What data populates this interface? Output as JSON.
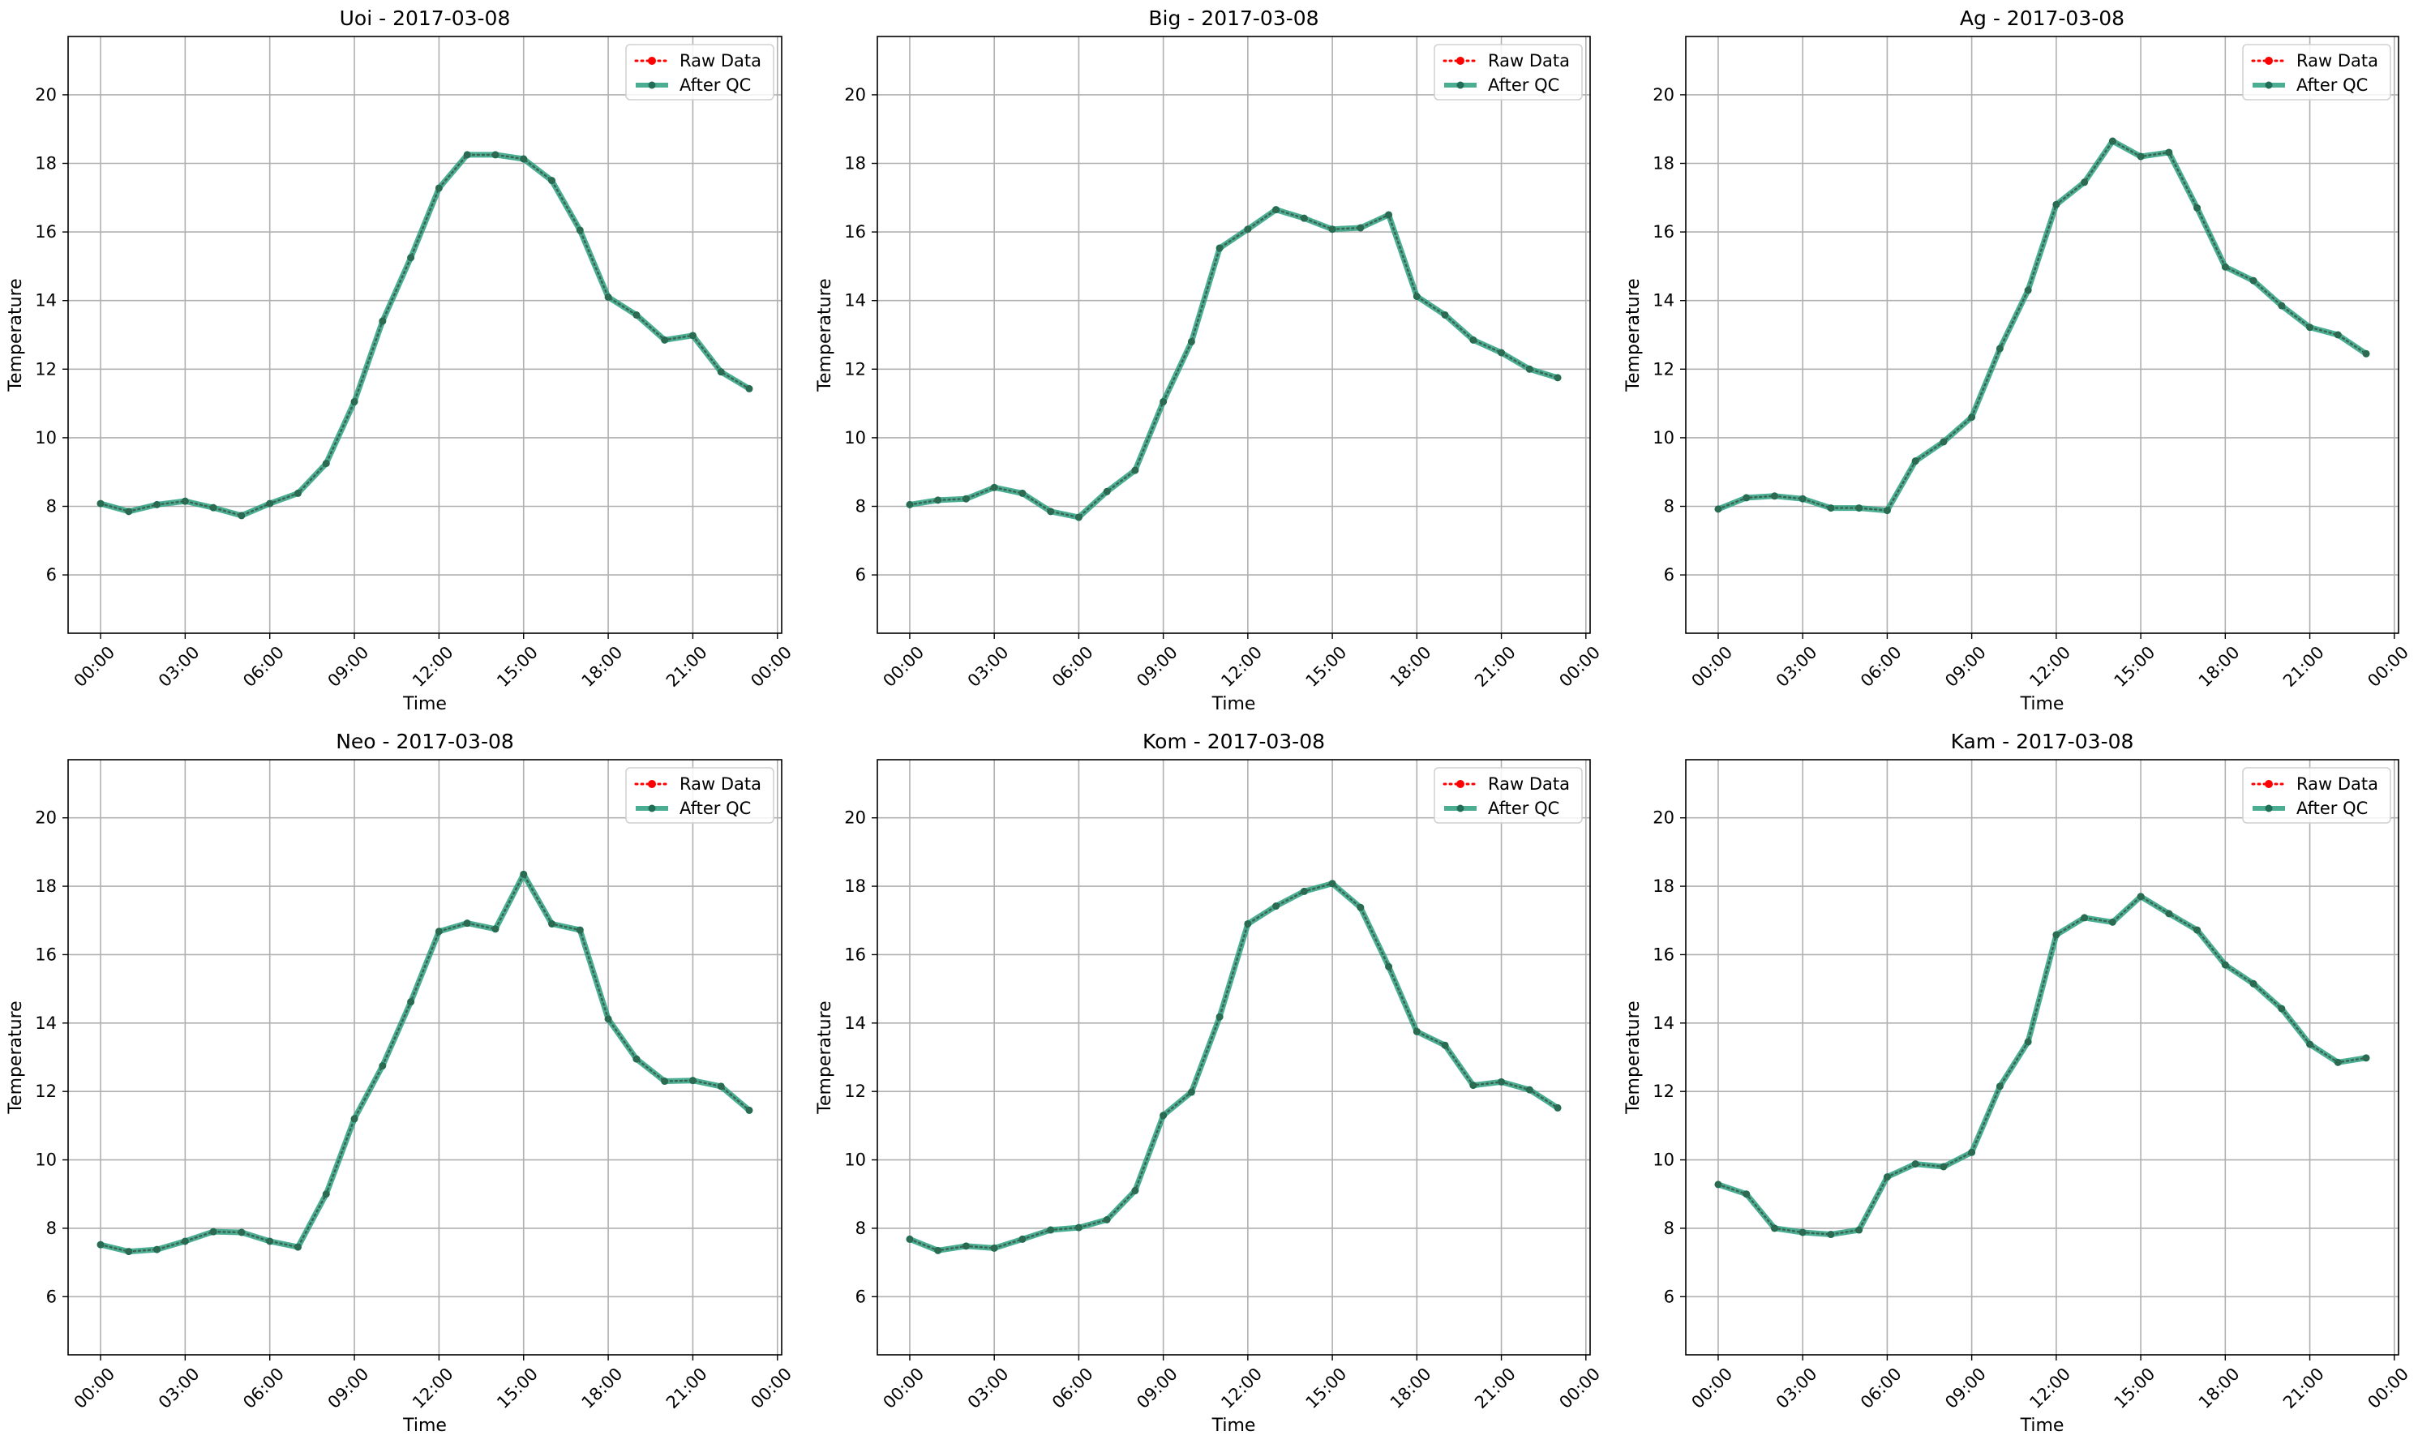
{
  "chart_data": [
    {
      "type": "line",
      "title": "Uoi - 2017-03-08",
      "xlabel": "Time",
      "ylabel": "Temperature",
      "x": [
        "00:00",
        "01:00",
        "02:00",
        "03:00",
        "04:00",
        "05:00",
        "06:00",
        "07:00",
        "08:00",
        "09:00",
        "10:00",
        "11:00",
        "12:00",
        "13:00",
        "14:00",
        "15:00",
        "16:00",
        "17:00",
        "18:00",
        "19:00",
        "20:00",
        "21:00",
        "22:00",
        "23:00"
      ],
      "xticks": [
        "00:00",
        "03:00",
        "06:00",
        "09:00",
        "12:00",
        "15:00",
        "18:00",
        "21:00",
        "00:00"
      ],
      "yticks": [
        6,
        8,
        10,
        12,
        14,
        16,
        18,
        20
      ],
      "ylim": [
        4.3,
        21.7
      ],
      "grid": true,
      "legend_position": "top-right",
      "series": [
        {
          "name": "Raw Data",
          "color": "#ff0000",
          "style": "dotted",
          "values": [
            8.08,
            7.85,
            8.05,
            8.15,
            7.96,
            7.73,
            8.08,
            8.38,
            9.25,
            11.05,
            13.4,
            15.25,
            17.28,
            18.25,
            18.25,
            18.13,
            17.5,
            16.05,
            14.1,
            13.58,
            12.85,
            12.98,
            11.92,
            11.43
          ]
        },
        {
          "name": "After QC",
          "color": "#2ca080",
          "style": "solid",
          "values": [
            8.08,
            7.85,
            8.05,
            8.15,
            7.96,
            7.73,
            8.08,
            8.38,
            9.25,
            11.05,
            13.4,
            15.25,
            17.28,
            18.25,
            18.25,
            18.13,
            17.5,
            16.05,
            14.1,
            13.58,
            12.85,
            12.98,
            11.92,
            11.43
          ]
        }
      ]
    },
    {
      "type": "line",
      "title": "Big - 2017-03-08",
      "xlabel": "Time",
      "ylabel": "Temperature",
      "x": [
        "00:00",
        "01:00",
        "02:00",
        "03:00",
        "04:00",
        "05:00",
        "06:00",
        "07:00",
        "08:00",
        "09:00",
        "10:00",
        "11:00",
        "12:00",
        "13:00",
        "14:00",
        "15:00",
        "16:00",
        "17:00",
        "18:00",
        "19:00",
        "20:00",
        "21:00",
        "22:00",
        "23:00"
      ],
      "xticks": [
        "00:00",
        "03:00",
        "06:00",
        "09:00",
        "12:00",
        "15:00",
        "18:00",
        "21:00",
        "00:00"
      ],
      "yticks": [
        6,
        8,
        10,
        12,
        14,
        16,
        18,
        20
      ],
      "ylim": [
        4.3,
        21.7
      ],
      "grid": true,
      "legend_position": "top-right",
      "series": [
        {
          "name": "Raw Data",
          "color": "#ff0000",
          "style": "dotted",
          "values": [
            8.05,
            8.18,
            8.22,
            8.55,
            8.38,
            7.85,
            7.68,
            8.43,
            9.05,
            11.05,
            12.8,
            15.53,
            16.08,
            16.65,
            16.4,
            16.08,
            16.12,
            16.5,
            14.12,
            13.58,
            12.85,
            12.48,
            12.0,
            11.75
          ]
        },
        {
          "name": "After QC",
          "color": "#2ca080",
          "style": "solid",
          "values": [
            8.05,
            8.18,
            8.22,
            8.55,
            8.38,
            7.85,
            7.68,
            8.43,
            9.05,
            11.05,
            12.8,
            15.53,
            16.08,
            16.65,
            16.4,
            16.08,
            16.12,
            16.5,
            14.12,
            13.58,
            12.85,
            12.48,
            12.0,
            11.75
          ]
        }
      ]
    },
    {
      "type": "line",
      "title": "Ag - 2017-03-08",
      "xlabel": "Time",
      "ylabel": "Temperature",
      "x": [
        "00:00",
        "01:00",
        "02:00",
        "03:00",
        "04:00",
        "05:00",
        "06:00",
        "07:00",
        "08:00",
        "09:00",
        "10:00",
        "11:00",
        "12:00",
        "13:00",
        "14:00",
        "15:00",
        "16:00",
        "17:00",
        "18:00",
        "19:00",
        "20:00",
        "21:00",
        "22:00",
        "23:00"
      ],
      "xticks": [
        "00:00",
        "03:00",
        "06:00",
        "09:00",
        "12:00",
        "15:00",
        "18:00",
        "21:00",
        "00:00"
      ],
      "yticks": [
        6,
        8,
        10,
        12,
        14,
        16,
        18,
        20
      ],
      "ylim": [
        4.3,
        21.7
      ],
      "grid": true,
      "legend_position": "top-right",
      "series": [
        {
          "name": "Raw Data",
          "color": "#ff0000",
          "style": "dotted",
          "values": [
            7.92,
            8.25,
            8.3,
            8.22,
            7.95,
            7.95,
            7.88,
            9.32,
            9.88,
            10.6,
            12.6,
            14.3,
            16.8,
            17.45,
            18.65,
            18.2,
            18.32,
            16.7,
            14.98,
            14.58,
            13.85,
            13.22,
            13.0,
            12.45
          ]
        },
        {
          "name": "After QC",
          "color": "#2ca080",
          "style": "solid",
          "values": [
            7.92,
            8.25,
            8.3,
            8.22,
            7.95,
            7.95,
            7.88,
            9.32,
            9.88,
            10.6,
            12.6,
            14.3,
            16.8,
            17.45,
            18.65,
            18.2,
            18.32,
            16.7,
            14.98,
            14.58,
            13.85,
            13.22,
            13.0,
            12.45
          ]
        }
      ]
    },
    {
      "type": "line",
      "title": "Neo - 2017-03-08",
      "xlabel": "Time",
      "ylabel": "Temperature",
      "x": [
        "00:00",
        "01:00",
        "02:00",
        "03:00",
        "04:00",
        "05:00",
        "06:00",
        "07:00",
        "08:00",
        "09:00",
        "10:00",
        "11:00",
        "12:00",
        "13:00",
        "14:00",
        "15:00",
        "16:00",
        "17:00",
        "18:00",
        "19:00",
        "20:00",
        "21:00",
        "22:00",
        "23:00"
      ],
      "xticks": [
        "00:00",
        "03:00",
        "06:00",
        "09:00",
        "12:00",
        "15:00",
        "18:00",
        "21:00",
        "00:00"
      ],
      "yticks": [
        6,
        8,
        10,
        12,
        14,
        16,
        18,
        20
      ],
      "ylim": [
        4.3,
        21.7
      ],
      "grid": true,
      "legend_position": "top-right",
      "series": [
        {
          "name": "Raw Data",
          "color": "#ff0000",
          "style": "dotted",
          "values": [
            7.52,
            7.32,
            7.38,
            7.62,
            7.9,
            7.88,
            7.62,
            7.45,
            9.0,
            11.2,
            12.75,
            14.62,
            16.68,
            16.92,
            16.75,
            18.35,
            16.9,
            16.72,
            14.12,
            12.95,
            12.3,
            12.32,
            12.15,
            11.45
          ]
        },
        {
          "name": "After QC",
          "color": "#2ca080",
          "style": "solid",
          "values": [
            7.52,
            7.32,
            7.38,
            7.62,
            7.9,
            7.88,
            7.62,
            7.45,
            9.0,
            11.2,
            12.75,
            14.62,
            16.68,
            16.92,
            16.75,
            18.35,
            16.9,
            16.72,
            14.12,
            12.95,
            12.3,
            12.32,
            12.15,
            11.45
          ]
        }
      ]
    },
    {
      "type": "line",
      "title": "Kom - 2017-03-08",
      "xlabel": "Time",
      "ylabel": "Temperature",
      "x": [
        "00:00",
        "01:00",
        "02:00",
        "03:00",
        "04:00",
        "05:00",
        "06:00",
        "07:00",
        "08:00",
        "09:00",
        "10:00",
        "11:00",
        "12:00",
        "13:00",
        "14:00",
        "15:00",
        "16:00",
        "17:00",
        "18:00",
        "19:00",
        "20:00",
        "21:00",
        "22:00",
        "23:00"
      ],
      "xticks": [
        "00:00",
        "03:00",
        "06:00",
        "09:00",
        "12:00",
        "15:00",
        "18:00",
        "21:00",
        "00:00"
      ],
      "yticks": [
        6,
        8,
        10,
        12,
        14,
        16,
        18,
        20
      ],
      "ylim": [
        4.3,
        21.7
      ],
      "grid": true,
      "legend_position": "top-right",
      "series": [
        {
          "name": "Raw Data",
          "color": "#ff0000",
          "style": "dotted",
          "values": [
            7.68,
            7.35,
            7.48,
            7.42,
            7.68,
            7.95,
            8.02,
            8.25,
            9.1,
            11.3,
            11.98,
            14.18,
            16.9,
            17.42,
            17.85,
            18.08,
            17.38,
            15.65,
            13.75,
            13.35,
            12.18,
            12.28,
            12.05,
            11.52
          ]
        },
        {
          "name": "After QC",
          "color": "#2ca080",
          "style": "solid",
          "values": [
            7.68,
            7.35,
            7.48,
            7.42,
            7.68,
            7.95,
            8.02,
            8.25,
            9.1,
            11.3,
            11.98,
            14.18,
            16.9,
            17.42,
            17.85,
            18.08,
            17.38,
            15.65,
            13.75,
            13.35,
            12.18,
            12.28,
            12.05,
            11.52
          ]
        }
      ]
    },
    {
      "type": "line",
      "title": "Kam - 2017-03-08",
      "xlabel": "Time",
      "ylabel": "Temperature",
      "x": [
        "00:00",
        "01:00",
        "02:00",
        "03:00",
        "04:00",
        "05:00",
        "06:00",
        "07:00",
        "08:00",
        "09:00",
        "10:00",
        "11:00",
        "12:00",
        "13:00",
        "14:00",
        "15:00",
        "16:00",
        "17:00",
        "18:00",
        "19:00",
        "20:00",
        "21:00",
        "22:00",
        "23:00"
      ],
      "xticks": [
        "00:00",
        "03:00",
        "06:00",
        "09:00",
        "12:00",
        "15:00",
        "18:00",
        "21:00",
        "00:00"
      ],
      "yticks": [
        6,
        8,
        10,
        12,
        14,
        16,
        18,
        20
      ],
      "ylim": [
        4.3,
        21.7
      ],
      "grid": true,
      "legend_position": "top-right",
      "series": [
        {
          "name": "Raw Data",
          "color": "#ff0000",
          "style": "dotted",
          "values": [
            9.28,
            9.0,
            8.0,
            7.88,
            7.82,
            7.95,
            9.5,
            9.88,
            9.8,
            10.22,
            12.15,
            13.45,
            16.58,
            17.08,
            16.95,
            17.7,
            17.2,
            16.72,
            15.7,
            15.15,
            14.42,
            13.38,
            12.85,
            12.98
          ]
        },
        {
          "name": "After QC",
          "color": "#2ca080",
          "style": "solid",
          "values": [
            9.28,
            9.0,
            8.0,
            7.88,
            7.82,
            7.95,
            9.5,
            9.88,
            9.8,
            10.22,
            12.15,
            13.45,
            16.58,
            17.08,
            16.95,
            17.7,
            17.2,
            16.72,
            15.7,
            15.15,
            14.42,
            13.38,
            12.85,
            12.98
          ]
        }
      ]
    }
  ]
}
